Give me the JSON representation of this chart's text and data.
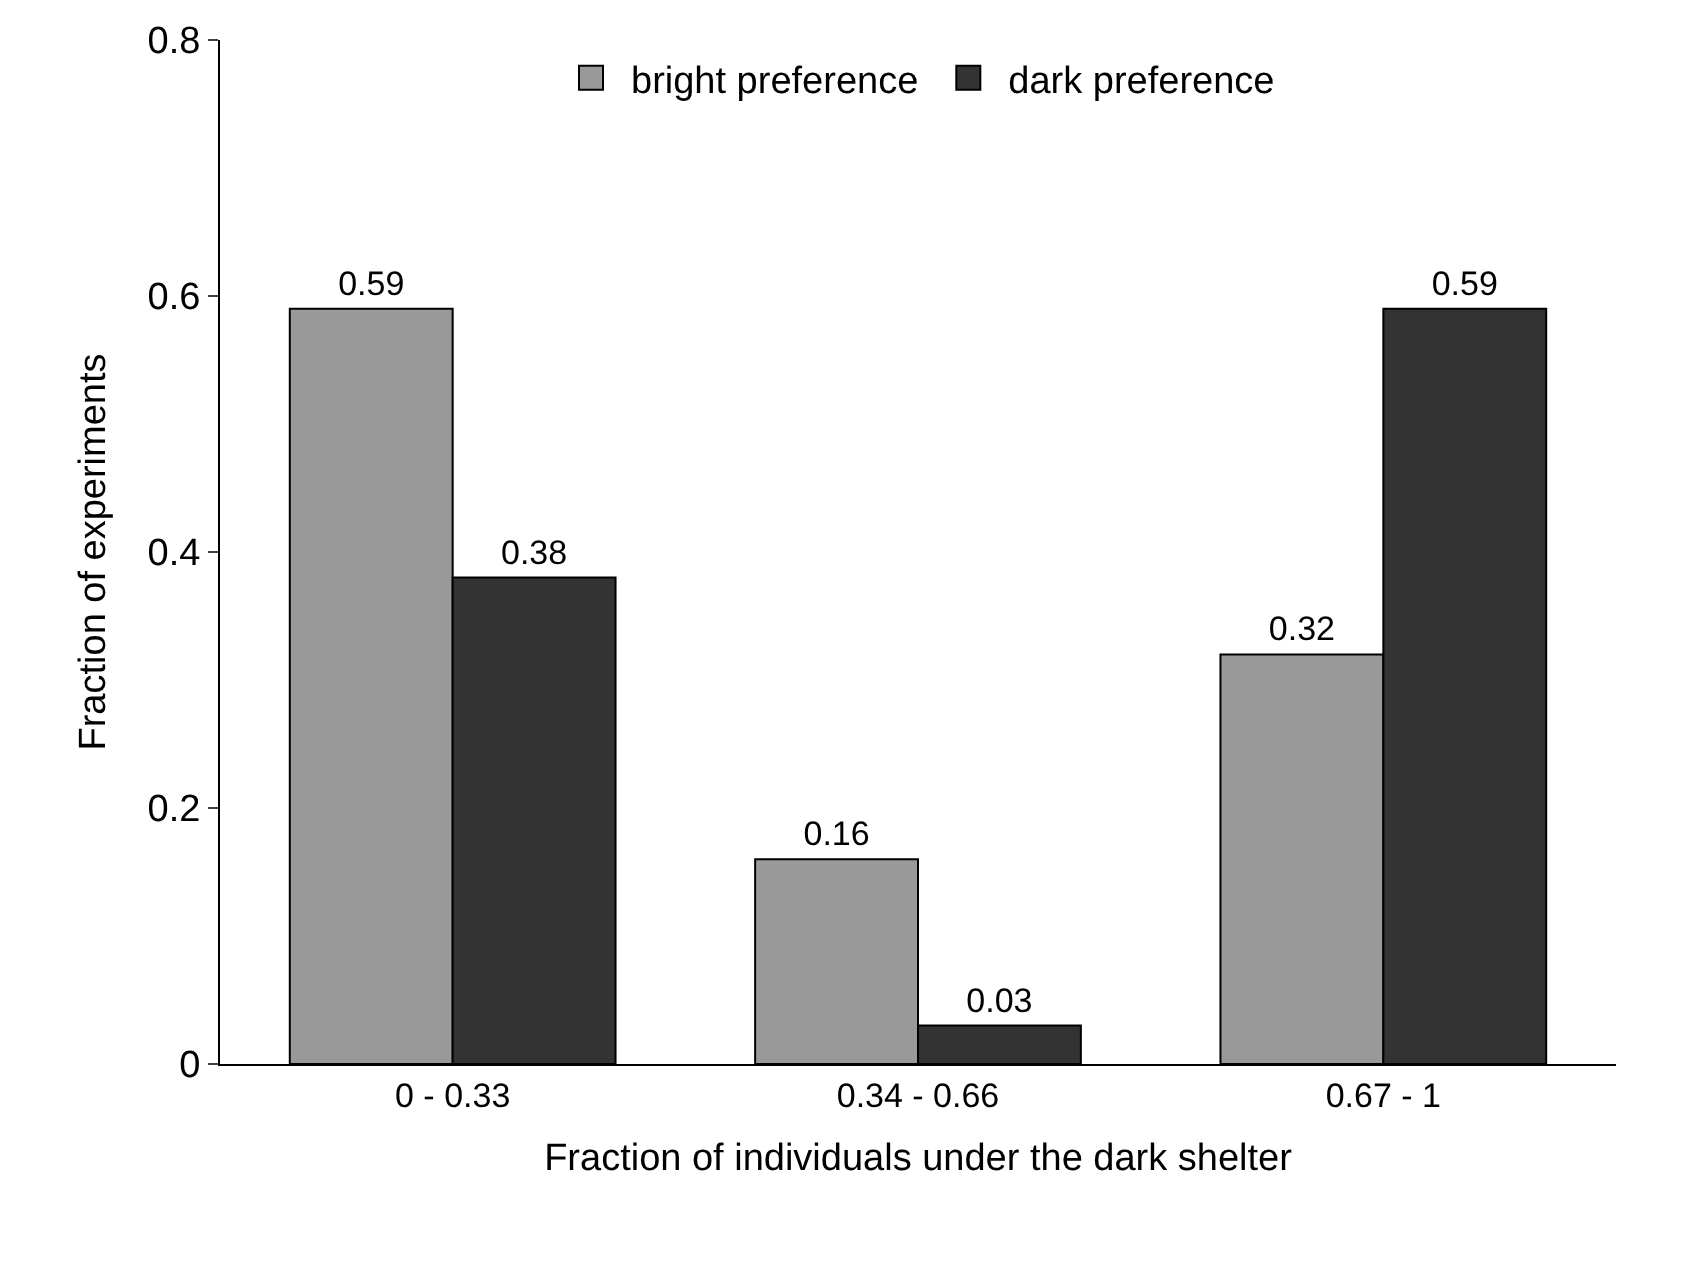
{
  "chart_data": {
    "type": "bar",
    "xlabel": "Fraction of individuals under the dark shelter",
    "ylabel": "Fraction of experiments",
    "categories": [
      "0 - 0.33",
      "0.34 - 0.66",
      "0.67 - 1"
    ],
    "series": [
      {
        "name": "bright preference",
        "color": "#999999",
        "values": [
          0.59,
          0.16,
          0.32
        ]
      },
      {
        "name": "dark preference",
        "color": "#333333",
        "values": [
          0.38,
          0.03,
          0.59
        ]
      }
    ],
    "ylim": [
      0,
      0.8
    ],
    "yticks": [
      0,
      0.2,
      0.4,
      0.6,
      0.8
    ],
    "data_labels": true,
    "legend": "top"
  }
}
